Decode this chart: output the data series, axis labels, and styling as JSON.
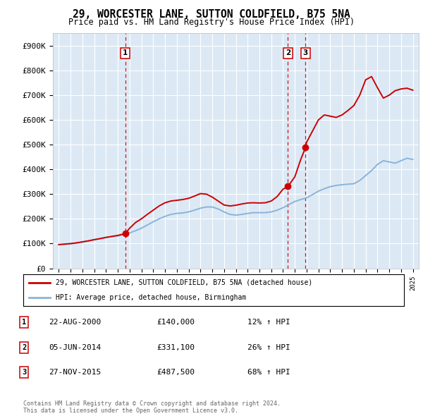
{
  "title": "29, WORCESTER LANE, SUTTON COLDFIELD, B75 5NA",
  "subtitle": "Price paid vs. HM Land Registry's House Price Index (HPI)",
  "background_color": "#dce9f5",
  "ylim": [
    0,
    950000
  ],
  "yticks": [
    0,
    100000,
    200000,
    300000,
    400000,
    500000,
    600000,
    700000,
    800000,
    900000
  ],
  "ytick_labels": [
    "£0",
    "£100K",
    "£200K",
    "£300K",
    "£400K",
    "£500K",
    "£600K",
    "£700K",
    "£800K",
    "£900K"
  ],
  "sale_year_floats": [
    2000.63,
    2014.42,
    2015.9
  ],
  "sale_prices": [
    140000,
    331100,
    487500
  ],
  "sale_labels": [
    "1",
    "2",
    "3"
  ],
  "legend_house_label": "29, WORCESTER LANE, SUTTON COLDFIELD, B75 5NA (detached house)",
  "legend_hpi_label": "HPI: Average price, detached house, Birmingham",
  "table_rows": [
    [
      "1",
      "22-AUG-2000",
      "£140,000",
      "12% ↑ HPI"
    ],
    [
      "2",
      "05-JUN-2014",
      "£331,100",
      "26% ↑ HPI"
    ],
    [
      "3",
      "27-NOV-2015",
      "£487,500",
      "68% ↑ HPI"
    ]
  ],
  "footer": "Contains HM Land Registry data © Crown copyright and database right 2024.\nThis data is licensed under the Open Government Licence v3.0.",
  "house_line_color": "#cc0000",
  "hpi_line_color": "#89b4d9",
  "vline_color": "#cc0000",
  "hpi_x": [
    1995,
    1995.5,
    1996,
    1996.5,
    1997,
    1997.5,
    1998,
    1998.5,
    1999,
    1999.5,
    2000,
    2000.5,
    2001,
    2001.5,
    2002,
    2002.5,
    2003,
    2003.5,
    2004,
    2004.5,
    2005,
    2005.5,
    2006,
    2006.5,
    2007,
    2007.5,
    2008,
    2008.5,
    2009,
    2009.5,
    2010,
    2010.5,
    2011,
    2011.5,
    2012,
    2012.5,
    2013,
    2013.5,
    2014,
    2014.5,
    2015,
    2015.5,
    2016,
    2016.5,
    2017,
    2017.5,
    2018,
    2018.5,
    2019,
    2019.5,
    2020,
    2020.5,
    2021,
    2021.5,
    2022,
    2022.5,
    2023,
    2023.5,
    2024,
    2024.5,
    2025
  ],
  "hpi_y": [
    95000,
    97000,
    99000,
    102000,
    106000,
    110000,
    115000,
    120000,
    125000,
    128000,
    131000,
    136000,
    143000,
    152000,
    162000,
    175000,
    188000,
    200000,
    210000,
    218000,
    222000,
    224000,
    228000,
    235000,
    243000,
    248000,
    248000,
    240000,
    228000,
    218000,
    215000,
    218000,
    222000,
    225000,
    225000,
    225000,
    228000,
    235000,
    245000,
    258000,
    270000,
    278000,
    285000,
    298000,
    312000,
    322000,
    330000,
    335000,
    338000,
    340000,
    342000,
    355000,
    375000,
    395000,
    420000,
    435000,
    430000,
    425000,
    435000,
    445000,
    440000
  ],
  "house_x": [
    1995,
    1995.5,
    1996,
    1996.5,
    1997,
    1997.5,
    1998,
    1998.5,
    1999,
    1999.5,
    2000,
    2000.25,
    2000.63,
    2001,
    2001.5,
    2002,
    2002.5,
    2003,
    2003.5,
    2004,
    2004.5,
    2005,
    2005.5,
    2006,
    2006.5,
    2007,
    2007.5,
    2008,
    2008.5,
    2009,
    2009.5,
    2010,
    2010.5,
    2011,
    2011.5,
    2012,
    2012.5,
    2013,
    2013.5,
    2014,
    2014.42,
    2015,
    2015.5,
    2015.9,
    2016,
    2016.5,
    2017,
    2017.5,
    2018,
    2018.5,
    2019,
    2019.5,
    2020,
    2020.5,
    2021,
    2021.5,
    2022,
    2022.5,
    2023,
    2023.5,
    2024,
    2024.5,
    2025
  ],
  "house_y": [
    96000,
    98000,
    100000,
    103000,
    107000,
    111000,
    116000,
    120000,
    125000,
    129000,
    133000,
    136000,
    140000,
    162000,
    185000,
    200000,
    218000,
    235000,
    252000,
    265000,
    272000,
    275000,
    278000,
    283000,
    292000,
    302000,
    300000,
    288000,
    272000,
    256000,
    252000,
    255000,
    260000,
    264000,
    265000,
    264000,
    265000,
    272000,
    290000,
    320000,
    331100,
    370000,
    440000,
    487500,
    510000,
    555000,
    600000,
    620000,
    615000,
    610000,
    620000,
    638000,
    658000,
    700000,
    762000,
    775000,
    730000,
    688000,
    700000,
    718000,
    725000,
    728000,
    720000
  ]
}
